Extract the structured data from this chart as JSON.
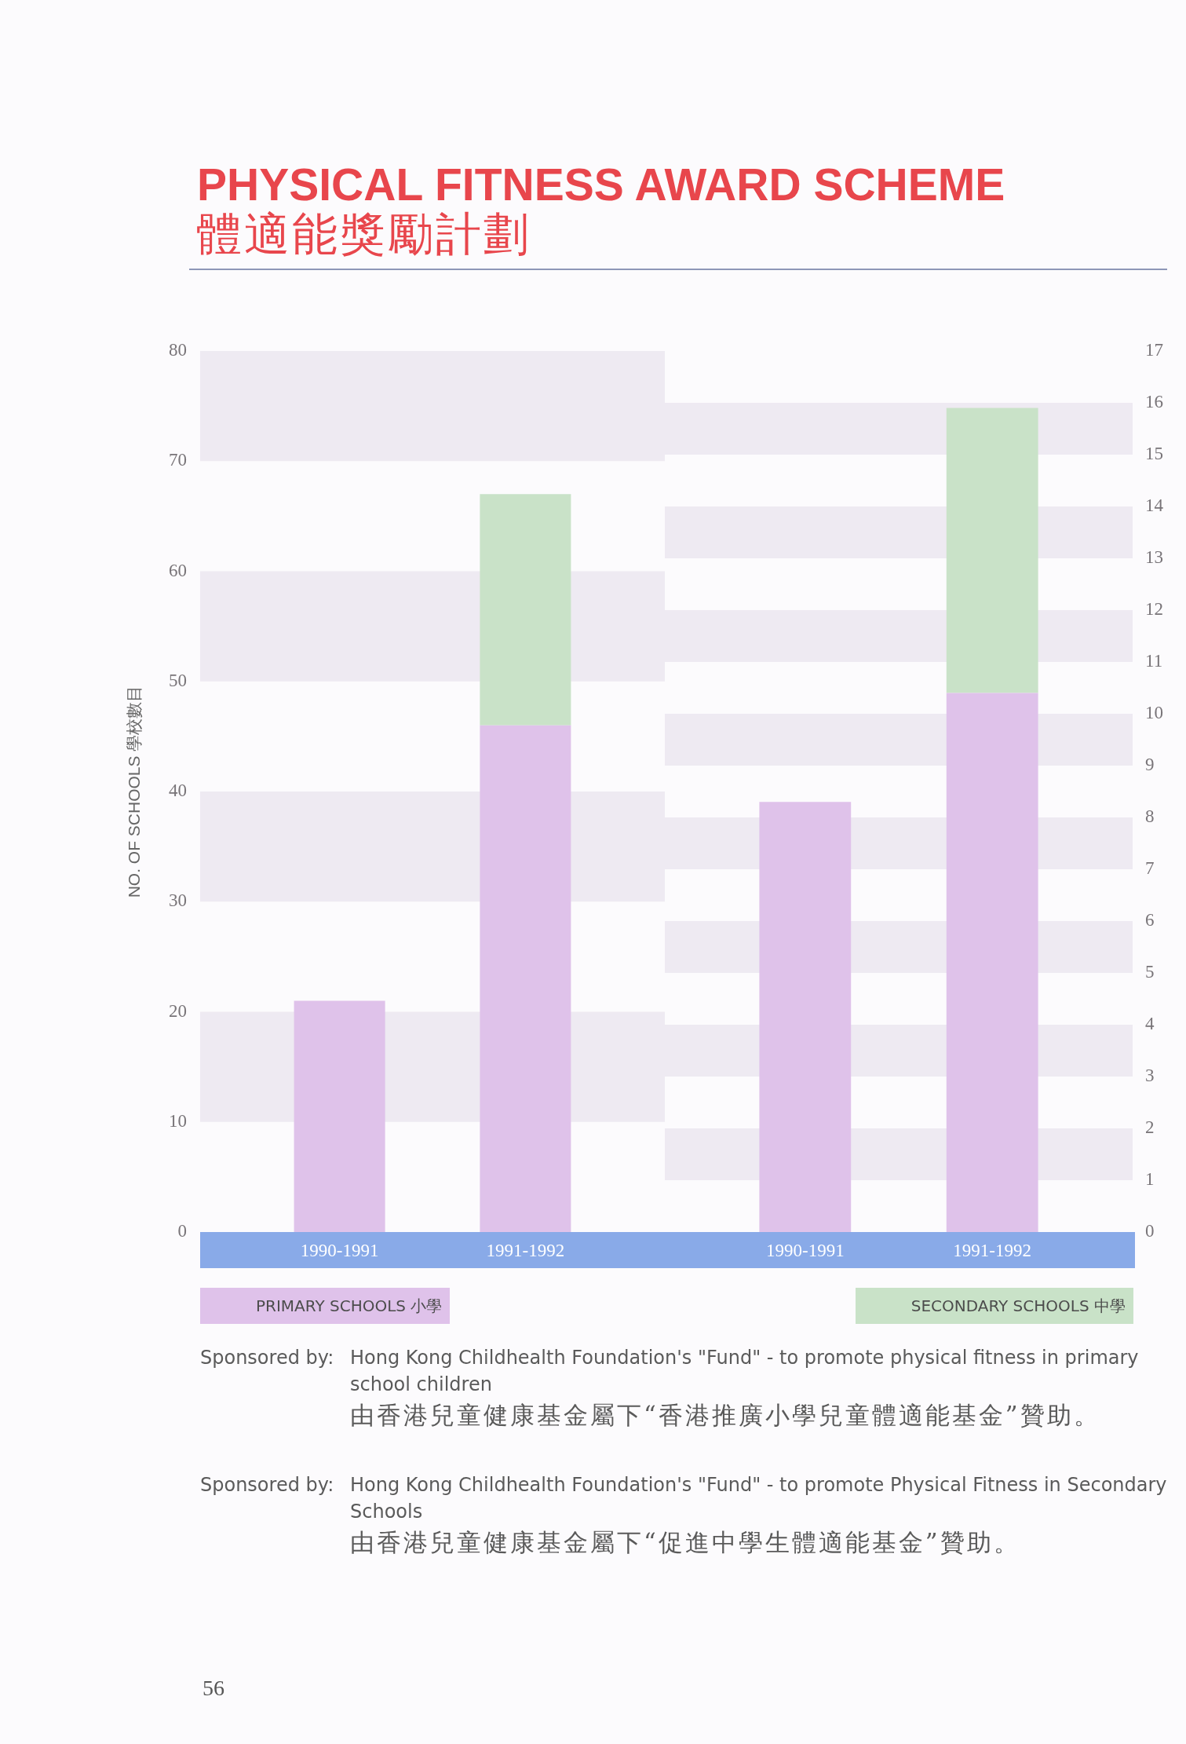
{
  "chart_data": [
    {
      "type": "bar",
      "title": "PHYSICAL FITNESS AWARD SCHEME",
      "subtitle": "體適能獎勵計劃",
      "ylabel": "NO. OF SCHOOLS 學校數目",
      "categories": [
        "1990-1991",
        "1991-1992"
      ],
      "series": [
        {
          "name": "PRIMARY SCHOOLS 小學",
          "color": "#dfc2ea",
          "values": [
            21,
            46
          ]
        },
        {
          "name": "SECONDARY SCHOOLS 中學",
          "color": "#c9e2c8",
          "values": [
            null,
            21
          ]
        }
      ],
      "stacked": true,
      "ylim": [
        0,
        80
      ],
      "yticks": [
        0,
        10,
        20,
        30,
        40,
        50,
        60,
        70,
        80
      ],
      "bands": [
        {
          "axis": "y",
          "from": 10,
          "to": 20,
          "color": "#eeeaf2"
        },
        {
          "axis": "y",
          "from": 30,
          "to": 40,
          "color": "#eeeaf2"
        },
        {
          "axis": "y",
          "from": 50,
          "to": 60,
          "color": "#eeeaf2"
        },
        {
          "axis": "y",
          "from": 70,
          "to": 80,
          "color": "#eeeaf2"
        }
      ],
      "legend": "bottom",
      "annotations": [
        "Sponsored by: Hong Kong Childhealth Foundation's \"Fund\" - to promote physical fitness in primary school children\n由香港兒童健康基金屬下“香港推廣小學兒童體適能基金”贊助。",
        "Sponsored by: Hong Kong Childhealth Foundation's \"Fund\" - to promote Physical Fitness in Secondary Schools\n由香港兒童健康基金屬下“促進中學生體適能基金”贊助。",
        "56"
      ]
    },
    {
      "type": "bar",
      "categories": [
        "1990-1991",
        "1991-1992"
      ],
      "series": [
        {
          "color": "#dfc2ea",
          "values": [
            8.3,
            10.4
          ]
        },
        {
          "color": "#c9e2c8",
          "values": [
            null,
            5.5
          ]
        }
      ],
      "stacked": true,
      "ylim": [
        0,
        17
      ],
      "yticks": [
        0,
        1,
        2,
        3,
        4,
        5,
        6,
        7,
        8,
        9,
        10,
        11,
        12,
        13,
        14,
        15,
        16,
        17
      ],
      "bands": [
        {
          "axis": "y",
          "from": 1,
          "to": 2,
          "color": "#eeeaf2"
        },
        {
          "axis": "y",
          "from": 3,
          "to": 4,
          "color": "#eeeaf2"
        },
        {
          "axis": "y",
          "from": 5,
          "to": 6,
          "color": "#eeeaf2"
        },
        {
          "axis": "y",
          "from": 7,
          "to": 8,
          "color": "#eeeaf2"
        },
        {
          "axis": "y",
          "from": 9,
          "to": 10,
          "color": "#eeeaf2"
        },
        {
          "axis": "y",
          "from": 11,
          "to": 12,
          "color": "#eeeaf2"
        },
        {
          "axis": "y",
          "from": 13,
          "to": 14,
          "color": "#eeeaf2"
        },
        {
          "axis": "y",
          "from": 15,
          "to": 16,
          "color": "#eeeaf2"
        }
      ]
    }
  ]
}
